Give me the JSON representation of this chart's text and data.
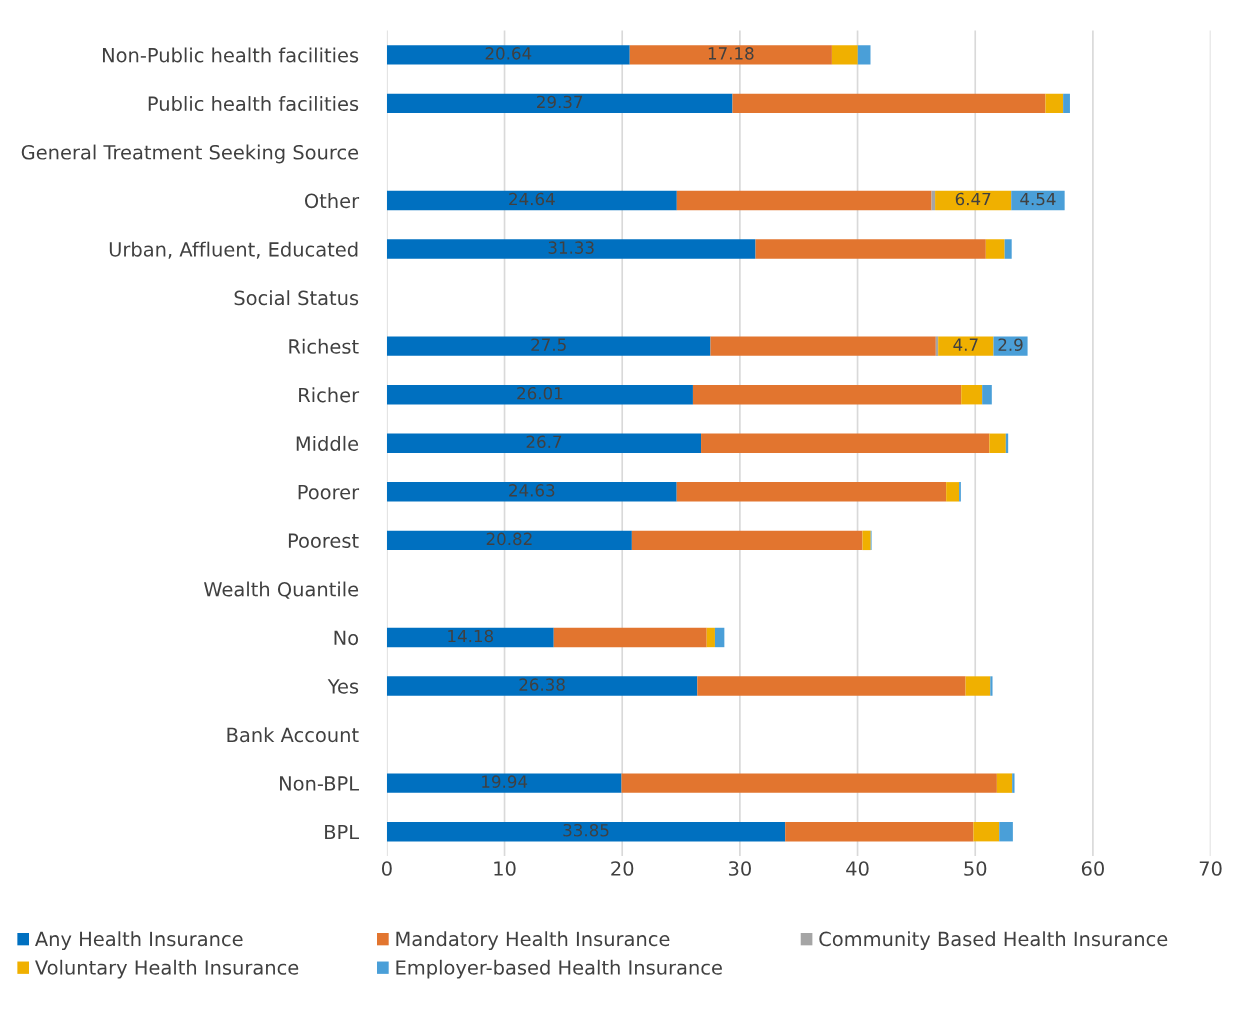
{
  "chart_data": {
    "type": "bar",
    "orientation": "horizontal",
    "stacked": true,
    "categories": [
      "Non-Public health facilities",
      "Public health facilities",
      "General Treatment Seeking Source",
      "Other",
      "Urban, Affluent, Educated",
      "Social Status",
      "Richest",
      "Richer",
      "Middle",
      "Poorer",
      "Poorest",
      "Wealth Quantile",
      "No",
      "Yes",
      "Bank Account",
      "Non-BPL",
      "BPL"
    ],
    "series": [
      {
        "name": "Any Health Insurance",
        "color": "#0070c0",
        "values": [
          20.64,
          29.37,
          null,
          24.64,
          31.33,
          null,
          27.5,
          26.01,
          26.7,
          24.63,
          20.82,
          null,
          14.18,
          26.38,
          null,
          19.94,
          33.85
        ],
        "value_labels": [
          "20.64",
          "29.37",
          null,
          "24.64",
          "31.33",
          null,
          "27.5",
          "26.01",
          "26.7",
          "24.63",
          "20.82",
          null,
          "14.18",
          "26.38",
          null,
          "19.94",
          "33.85"
        ]
      },
      {
        "name": "Mandatory Health Insurance",
        "color": "#e2752f",
        "values": [
          17.18,
          26.6,
          null,
          21.65,
          19.57,
          null,
          19.15,
          22.8,
          24.5,
          22.9,
          19.6,
          null,
          13.0,
          22.8,
          null,
          31.9,
          16.0
        ],
        "value_labels": [
          "17.18",
          null,
          null,
          null,
          null,
          null,
          null,
          null,
          null,
          null,
          null,
          null,
          null,
          null,
          null,
          null,
          null
        ]
      },
      {
        "name": "Community Based Health Insurance",
        "color": "#a5a5a5",
        "values": [
          0,
          0,
          null,
          0.3,
          0,
          null,
          0.2,
          0,
          0,
          0,
          0,
          null,
          0,
          0,
          null,
          0,
          0
        ]
      },
      {
        "name": "Voluntary Health Insurance",
        "color": "#f0b000",
        "values": [
          2.2,
          1.5,
          null,
          6.47,
          1.6,
          null,
          4.7,
          1.78,
          1.4,
          1.1,
          0.7,
          null,
          0.7,
          2.1,
          null,
          1.3,
          2.19
        ],
        "value_labels": [
          null,
          null,
          null,
          "6.47",
          null,
          null,
          "4.7",
          null,
          null,
          null,
          null,
          null,
          null,
          null,
          null,
          null,
          null
        ]
      },
      {
        "name": "Employer-based Health Insurance",
        "color": "#4a9fd8",
        "values": [
          1.08,
          0.58,
          null,
          4.54,
          0.6,
          null,
          2.9,
          0.82,
          0.2,
          0.15,
          0.07,
          null,
          0.8,
          0.19,
          null,
          0.2,
          1.16
        ],
        "value_labels": [
          null,
          null,
          null,
          "4.54",
          null,
          null,
          "2.9",
          null,
          null,
          null,
          null,
          null,
          null,
          null,
          null,
          null,
          null
        ]
      }
    ],
    "xlim": [
      0,
      70
    ],
    "xticks": [
      0,
      10,
      20,
      30,
      40,
      50,
      60,
      70
    ],
    "grid": "x",
    "legend": "bottom"
  }
}
